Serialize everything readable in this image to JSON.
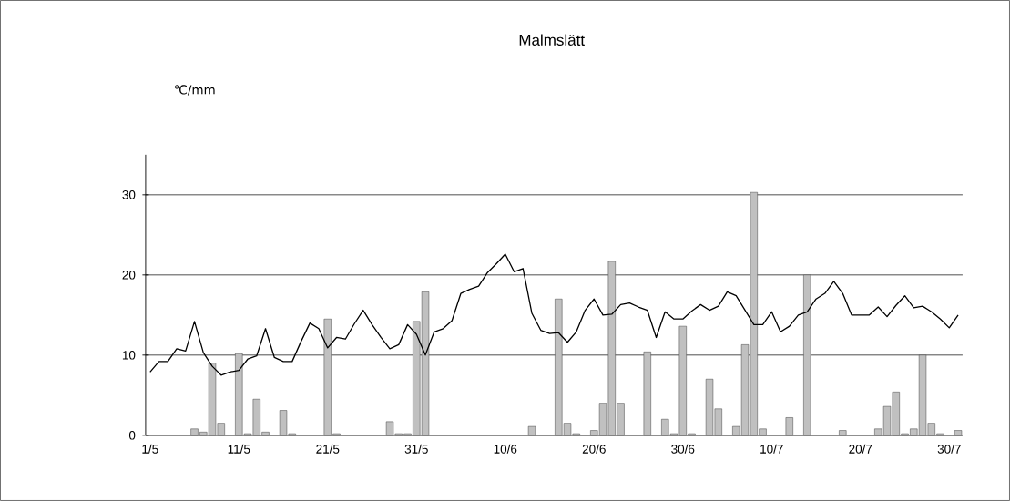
{
  "chart_data": {
    "type": "bar",
    "title": "Malmslätt",
    "ylabel": "℃/mm",
    "categories": [
      "1/5",
      null,
      null,
      null,
      null,
      null,
      null,
      null,
      null,
      null,
      "11/5",
      null,
      null,
      null,
      null,
      null,
      null,
      null,
      null,
      null,
      "21/5",
      null,
      null,
      null,
      null,
      null,
      null,
      null,
      null,
      null,
      "31/5",
      null,
      null,
      null,
      null,
      null,
      null,
      null,
      null,
      null,
      "10/6",
      null,
      null,
      null,
      null,
      null,
      null,
      null,
      null,
      null,
      "20/6",
      null,
      null,
      null,
      null,
      null,
      null,
      null,
      null,
      null,
      "30/6",
      null,
      null,
      null,
      null,
      null,
      null,
      null,
      null,
      null,
      "10/7",
      null,
      null,
      null,
      null,
      null,
      null,
      null,
      null,
      null,
      "20/7",
      null,
      null,
      null,
      null,
      null,
      null,
      null,
      null,
      null,
      "30/7",
      null
    ],
    "series": [
      {
        "color": "#c0c0c0",
        "values": [
          null,
          null,
          null,
          null,
          null,
          0.8,
          0.4,
          9.0,
          1.5,
          null,
          10.2,
          0.2,
          4.5,
          0.4,
          null,
          3.1,
          0.2,
          null,
          null,
          null,
          14.5,
          0.2,
          null,
          null,
          null,
          null,
          null,
          1.7,
          0.2,
          0.2,
          14.2,
          17.9,
          null,
          null,
          null,
          null,
          null,
          null,
          null,
          null,
          null,
          null,
          null,
          1.1,
          null,
          null,
          17.0,
          1.5,
          0.2,
          null,
          0.6,
          4.0,
          21.7,
          4.0,
          null,
          null,
          10.4,
          null,
          2.0,
          0.2,
          13.6,
          0.2,
          null,
          7.0,
          3.3,
          null,
          1.1,
          11.3,
          30.3,
          0.8,
          null,
          null,
          2.2,
          null,
          20.0,
          null,
          null,
          null,
          0.6,
          null,
          null,
          null,
          0.8,
          3.6,
          5.4,
          0.2,
          0.8,
          10.0,
          1.5,
          0.2,
          null,
          0.6
        ]
      },
      {
        "type": "line",
        "color": "#000000",
        "values": [
          7.9,
          9.2,
          9.2,
          10.8,
          10.5,
          14.2,
          10.3,
          8.6,
          7.5,
          7.9,
          8.1,
          9.5,
          9.9,
          13.3,
          9.7,
          9.2,
          9.2,
          11.7,
          14.0,
          13.3,
          10.9,
          12.2,
          12.0,
          13.9,
          15.6,
          13.8,
          12.2,
          10.8,
          11.3,
          13.8,
          12.6,
          10.0,
          12.9,
          13.3,
          14.3,
          17.7,
          18.2,
          18.6,
          20.3,
          21.4,
          22.6,
          20.4,
          20.8,
          15.2,
          13.1,
          12.7,
          12.8,
          11.6,
          12.9,
          15.6,
          17.0,
          15.0,
          15.1,
          16.3,
          16.5,
          16.0,
          15.6,
          12.2,
          15.4,
          14.5,
          14.5,
          15.5,
          16.3,
          15.6,
          16.1,
          17.9,
          17.4,
          15.6,
          13.8,
          13.8,
          15.4,
          12.9,
          13.6,
          15.0,
          15.4,
          17.0,
          17.7,
          19.2,
          17.7,
          15.0,
          15.0,
          15.0,
          16.0,
          14.8,
          16.2,
          17.4,
          15.9,
          16.1,
          15.4,
          14.5,
          13.4,
          15.0
        ]
      }
    ],
    "ylim": [
      0,
      35
    ],
    "yticks": [
      0,
      10,
      20,
      30
    ],
    "grid": "y"
  }
}
